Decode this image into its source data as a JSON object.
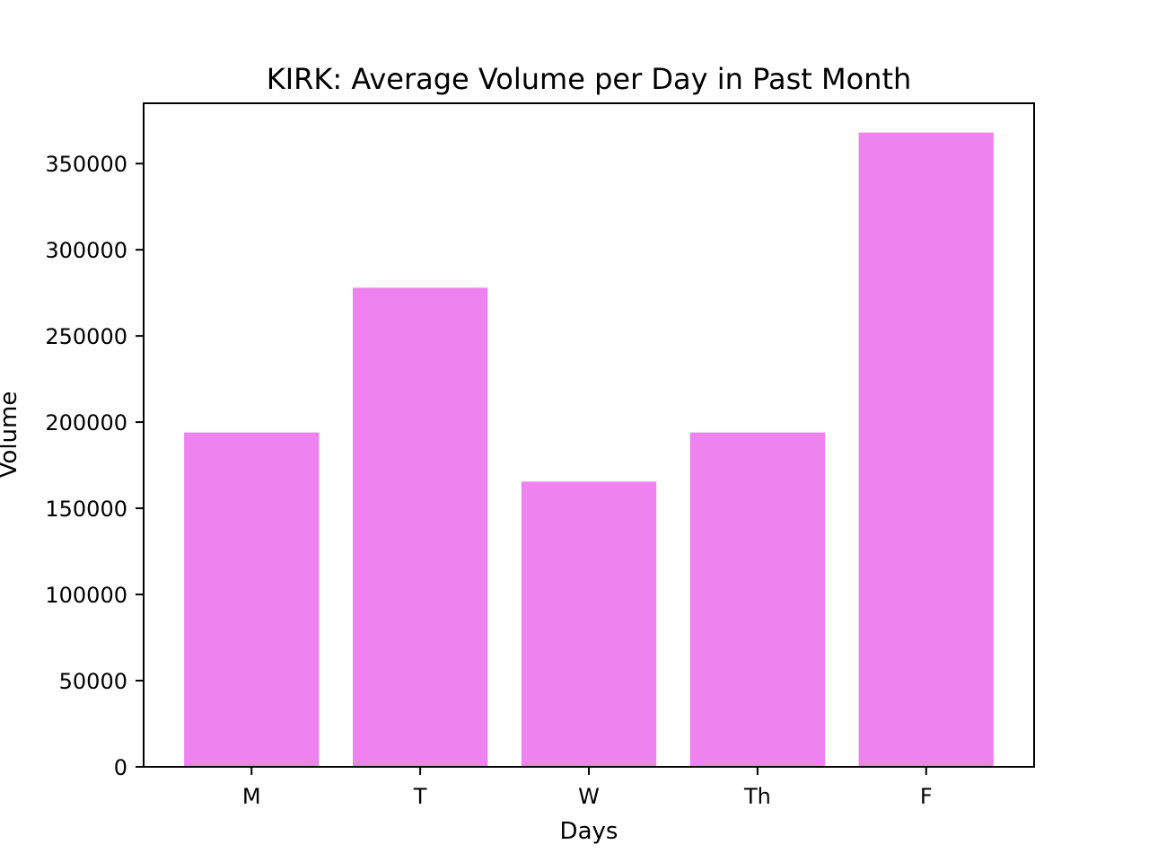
{
  "chart_data": {
    "type": "bar",
    "title": "KIRK: Average Volume per Day in Past Month",
    "xlabel": "Days",
    "ylabel": "Volume",
    "categories": [
      "M",
      "T",
      "W",
      "Th",
      "F"
    ],
    "values": [
      194000,
      278000,
      165500,
      194000,
      368000
    ],
    "ylim": [
      0,
      385000
    ],
    "yticks": [
      0,
      50000,
      100000,
      150000,
      200000,
      250000,
      300000,
      350000
    ],
    "bar_color": "#ee82ee",
    "grid": false,
    "legend": "none"
  }
}
